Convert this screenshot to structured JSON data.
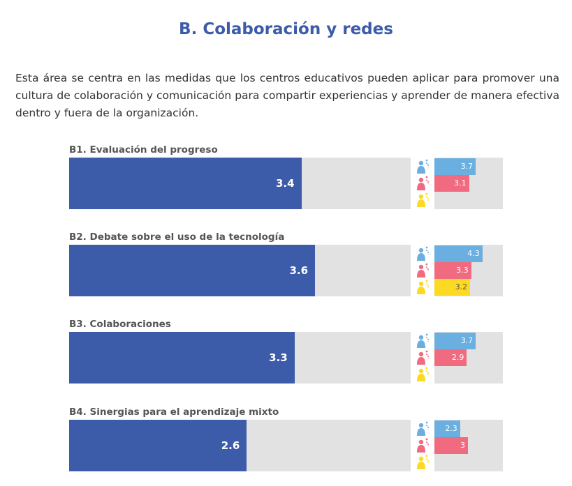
{
  "page": {
    "title": "B. Colaboración y redes",
    "intro": "Esta área se centra en las medidas que los centros educativos pueden aplicar para promover una cultura de colaboración y comunicación para compartir experiencias y aprender de manera efectiva dentro y fuera de la organización."
  },
  "colors": {
    "overall": "#3c5ba9",
    "group_1": "#6aafe0",
    "group_2": "#f06a80",
    "group_3": "#fcd923",
    "track": "#e2e2e2"
  },
  "icons": [
    "person-group-blue-icon",
    "person-group-pink-icon",
    "person-group-yellow-icon"
  ],
  "chart_data": [
    {
      "type": "bar",
      "title": "B1. Evaluación del progreso",
      "value": 3.4,
      "value_label": "3.4",
      "xlim": [
        0,
        5
      ],
      "groups": [
        {
          "values": 3.7,
          "label": "3.7"
        },
        {
          "values": 3.1,
          "label": "3.1"
        },
        {
          "values": null,
          "label": ""
        }
      ]
    },
    {
      "type": "bar",
      "title": "B2. Debate sobre el uso de la tecnología",
      "value": 3.6,
      "value_label": "3.6",
      "xlim": [
        0,
        5
      ],
      "groups": [
        {
          "values": 4.3,
          "label": "4.3"
        },
        {
          "values": 3.3,
          "label": "3.3"
        },
        {
          "values": 3.2,
          "label": "3.2"
        }
      ]
    },
    {
      "type": "bar",
      "title": "B3. Colaboraciones",
      "value": 3.3,
      "value_label": "3.3",
      "xlim": [
        0,
        5
      ],
      "groups": [
        {
          "values": 3.7,
          "label": "3.7"
        },
        {
          "values": 2.9,
          "label": "2.9"
        },
        {
          "values": null,
          "label": ""
        }
      ]
    },
    {
      "type": "bar",
      "title": "B4. Sinergias para el aprendizaje mixto",
      "value": 2.6,
      "value_label": "2.6",
      "xlim": [
        0,
        5
      ],
      "groups": [
        {
          "values": 2.3,
          "label": "2.3"
        },
        {
          "values": 3.0,
          "label": "3"
        },
        {
          "values": null,
          "label": ""
        }
      ]
    }
  ]
}
